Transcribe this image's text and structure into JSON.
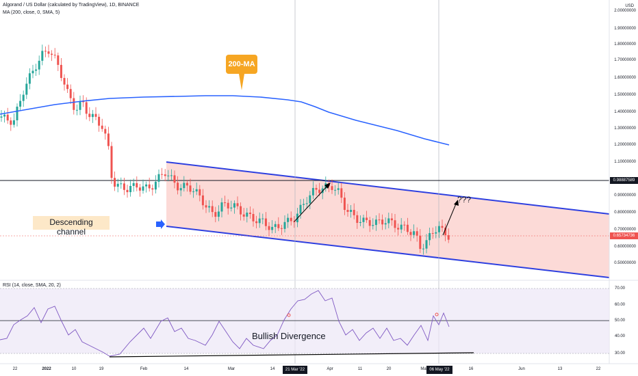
{
  "header": {
    "title": "Algorand / US Dollar (calculated by TradingView), 1D, BINANCE",
    "ma_indicator": "MA (200, close, 0, SMA, 5)",
    "rsi_indicator": "RSI (14, close, SMA, 20, 2)"
  },
  "price_axis": {
    "currency": "USD",
    "ticks": [
      "2.00000000",
      "1.90000000",
      "1.80000000",
      "1.70000000",
      "1.60000000",
      "1.50000000",
      "1.40000000",
      "1.30000000",
      "1.20000000",
      "1.10000000",
      "0.90000000",
      "0.80000000",
      "0.70000000",
      "0.60000000",
      "0.50000000"
    ],
    "marker_level": "0.98887589",
    "last_price": "0.65734736"
  },
  "rsi_axis": {
    "ticks": [
      "70.00",
      "60.00",
      "50.00",
      "40.00",
      "30.00"
    ]
  },
  "time_axis": {
    "ticks": [
      "22",
      "2022",
      "10",
      "19",
      "Feb",
      "14",
      "Mar",
      "14",
      "Apr",
      "11",
      "20",
      "May",
      "16",
      "Jun",
      "13",
      "22"
    ],
    "cursor_label_1": "21 Mar '22",
    "cursor_label_2": "06 May '22"
  },
  "annotations": {
    "ma_callout": "200-MA",
    "channel_label": "Descending channel",
    "question": "???",
    "divergence_label": "Bullish Divergence"
  },
  "colors": {
    "up": "#26a69a",
    "down": "#ef5350",
    "ma": "#2962ff",
    "channel_fill": "#f8c9c7",
    "rsi_line": "#7e57c2",
    "callout": "#f6a623"
  }
}
